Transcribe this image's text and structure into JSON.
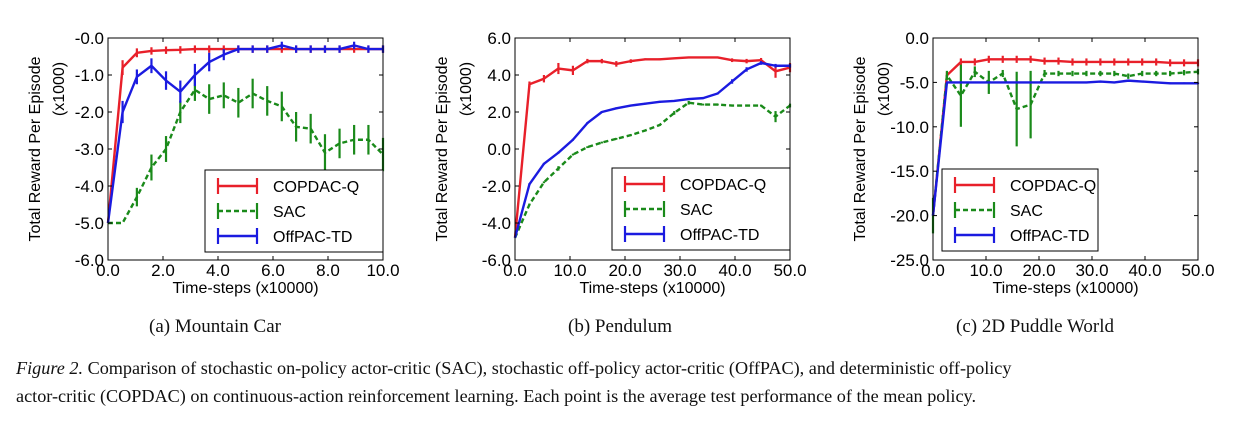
{
  "colors": {
    "COPDAC-Q": "#e8202a",
    "SAC": "#1a8a1a",
    "OffPAC-TD": "#1b1be0"
  },
  "chart_data": [
    {
      "type": "line",
      "subcaption": "(a) Mountain Car",
      "xlabel": "Time-steps (x10000)",
      "ylabel": "Total Reward Per Episode",
      "ylabel2": "(x1000)",
      "xlim": [
        0,
        10
      ],
      "ylim": [
        -6,
        0
      ],
      "xticks": [
        "0.0",
        "2.0",
        "4.0",
        "6.0",
        "8.0",
        "10.0"
      ],
      "yticks": [
        "-6.0",
        "-5.0",
        "-4.0",
        "-3.0",
        "-2.0",
        "-1.0",
        "-0.0"
      ],
      "legend": "bottom-right",
      "x": [
        0,
        0.53,
        1.05,
        1.58,
        2.11,
        2.63,
        3.16,
        3.68,
        4.21,
        4.74,
        5.26,
        5.79,
        6.32,
        6.84,
        7.37,
        7.89,
        8.42,
        8.95,
        9.47,
        10.0
      ],
      "series": [
        {
          "name": "COPDAC-Q",
          "style": "solid",
          "values": [
            -5.0,
            -0.8,
            -0.4,
            -0.35,
            -0.33,
            -0.32,
            -0.3,
            -0.3,
            -0.3,
            -0.3,
            -0.3,
            -0.3,
            -0.3,
            -0.3,
            -0.3,
            -0.3,
            -0.3,
            -0.3,
            -0.3,
            -0.3
          ],
          "errors": [
            0,
            0.2,
            0.12,
            0.1,
            0.1,
            0.1,
            0.1,
            0.1,
            0.1,
            0.1,
            0.1,
            0.1,
            0.1,
            0.1,
            0.1,
            0.1,
            0.1,
            0.1,
            0.1,
            0.1
          ]
        },
        {
          "name": "SAC",
          "style": "dashed",
          "values": [
            -5.0,
            -5.0,
            -4.3,
            -3.5,
            -3.0,
            -2.0,
            -1.4,
            -1.65,
            -1.55,
            -1.75,
            -1.5,
            -1.7,
            -1.85,
            -2.4,
            -2.45,
            -3.1,
            -2.85,
            -2.75,
            -2.75,
            -3.15
          ],
          "errors": [
            0,
            0,
            0.25,
            0.35,
            0.35,
            0.3,
            0.3,
            0.4,
            0.35,
            0.4,
            0.4,
            0.4,
            0.4,
            0.4,
            0.4,
            0.5,
            0.4,
            0.4,
            0.4,
            0.45
          ]
        },
        {
          "name": "OffPAC-TD",
          "style": "solid",
          "values": [
            -5.0,
            -2.0,
            -1.05,
            -0.75,
            -1.15,
            -1.45,
            -1.0,
            -0.65,
            -0.45,
            -0.3,
            -0.3,
            -0.3,
            -0.2,
            -0.3,
            -0.3,
            -0.3,
            -0.3,
            -0.2,
            -0.3,
            -0.3
          ],
          "errors": [
            0,
            0.3,
            0.2,
            0.2,
            0.25,
            0.3,
            0.3,
            0.25,
            0.15,
            0.1,
            0.1,
            0.1,
            0.1,
            0.1,
            0.1,
            0.1,
            0.1,
            0.1,
            0.1,
            0.1
          ]
        }
      ]
    },
    {
      "type": "line",
      "subcaption": "(b) Pendulum",
      "xlabel": "Time-steps (x10000)",
      "ylabel": "Total Reward Per Episode",
      "ylabel2": "(x1000)",
      "xlim": [
        0,
        50
      ],
      "ylim": [
        -6,
        6
      ],
      "xticks": [
        "0.0",
        "10.0",
        "20.0",
        "30.0",
        "40.0",
        "50.0"
      ],
      "yticks": [
        "-6.0",
        "-4.0",
        "-2.0",
        "0.0",
        "2.0",
        "4.0",
        "6.0"
      ],
      "legend": "bottom-right",
      "x": [
        0,
        2.63,
        5.26,
        7.89,
        10.53,
        13.16,
        15.79,
        18.42,
        21.05,
        23.68,
        26.32,
        28.95,
        31.58,
        34.21,
        36.84,
        39.47,
        42.11,
        44.74,
        47.37,
        50.0
      ],
      "series": [
        {
          "name": "COPDAC-Q",
          "style": "solid",
          "values": [
            -4.8,
            3.5,
            3.8,
            4.35,
            4.25,
            4.75,
            4.75,
            4.6,
            4.75,
            4.85,
            4.85,
            4.9,
            4.95,
            4.95,
            4.95,
            4.8,
            4.75,
            4.8,
            4.2,
            4.4
          ],
          "errors": [
            0,
            0.15,
            0.2,
            0.3,
            0.25,
            0.12,
            0.12,
            0.15,
            0.1,
            0.05,
            0.05,
            0.03,
            0.03,
            0.03,
            0.03,
            0.1,
            0.12,
            0.12,
            0.35,
            0.25
          ]
        },
        {
          "name": "SAC",
          "style": "dashed",
          "values": [
            -4.8,
            -3.0,
            -1.8,
            -1.05,
            -0.3,
            0.1,
            0.35,
            0.55,
            0.75,
            1.0,
            1.3,
            1.95,
            2.5,
            2.4,
            2.4,
            2.35,
            2.35,
            2.35,
            1.75,
            2.35
          ],
          "errors": [
            0,
            0.05,
            0.05,
            0.12,
            0.05,
            0.05,
            0.05,
            0.05,
            0.05,
            0.05,
            0.05,
            0.1,
            0.1,
            0.05,
            0.05,
            0.05,
            0.05,
            0.05,
            0.3,
            0.1
          ]
        },
        {
          "name": "OffPAC-TD",
          "style": "solid",
          "values": [
            -4.8,
            -1.9,
            -0.8,
            -0.2,
            0.5,
            1.4,
            2.0,
            2.2,
            2.35,
            2.45,
            2.55,
            2.6,
            2.7,
            2.75,
            3.0,
            3.65,
            4.3,
            4.65,
            4.5,
            4.5
          ],
          "errors": [
            0,
            0.05,
            0.05,
            0.05,
            0.05,
            0.05,
            0.05,
            0.05,
            0.05,
            0.05,
            0.05,
            0.05,
            0.05,
            0.05,
            0.05,
            0.12,
            0.12,
            0.1,
            0.1,
            0.1
          ]
        }
      ]
    },
    {
      "type": "line",
      "subcaption": "(c) 2D Puddle World",
      "xlabel": "Time-steps (x10000)",
      "ylabel": "Total Reward Per Episode",
      "ylabel2": "(x1000)",
      "xlim": [
        0,
        50
      ],
      "ylim": [
        -25,
        0
      ],
      "xticks": [
        "0.0",
        "10.0",
        "20.0",
        "30.0",
        "40.0",
        "50.0"
      ],
      "yticks": [
        "-25.0",
        "-20.0",
        "-15.0",
        "-10.0",
        "-5.0",
        "0.0"
      ],
      "legend": "bottom-left",
      "x": [
        0,
        2.63,
        5.26,
        7.89,
        10.53,
        13.16,
        15.79,
        18.42,
        21.05,
        23.68,
        26.32,
        28.95,
        31.58,
        34.21,
        36.84,
        39.47,
        42.11,
        44.74,
        47.37,
        50.0
      ],
      "series": [
        {
          "name": "COPDAC-Q",
          "style": "solid",
          "values": [
            -20,
            -4.2,
            -2.7,
            -2.7,
            -2.4,
            -2.4,
            -2.4,
            -2.4,
            -2.6,
            -2.6,
            -2.7,
            -2.7,
            -2.7,
            -2.7,
            -2.7,
            -2.7,
            -2.7,
            -2.8,
            -2.8,
            -2.8
          ],
          "errors": [
            0,
            0.4,
            0.4,
            0.4,
            0.4,
            0.4,
            0.4,
            0.4,
            0.4,
            0.4,
            0.4,
            0.4,
            0.4,
            0.4,
            0.4,
            0.4,
            0.4,
            0.4,
            0.4,
            0.4
          ]
        },
        {
          "name": "SAC",
          "style": "dashed",
          "values": [
            -20,
            -4.2,
            -6.5,
            -3.8,
            -5.0,
            -4.0,
            -8.0,
            -7.5,
            -4.0,
            -4.0,
            -4.0,
            -4.0,
            -4.0,
            -4.0,
            -4.3,
            -4.0,
            -4.0,
            -4.0,
            -3.9,
            -3.8
          ],
          "errors": [
            2,
            0.5,
            3.5,
            0.6,
            1.3,
            0.4,
            4.2,
            3.8,
            0.4,
            0.3,
            0.3,
            0.3,
            0.3,
            0.3,
            0.3,
            0.3,
            0.3,
            0.3,
            0.3,
            0.3
          ]
        },
        {
          "name": "OffPAC-TD",
          "style": "solid",
          "values": [
            -20,
            -5.0,
            -5.0,
            -5.0,
            -5.0,
            -5.0,
            -5.0,
            -5.0,
            -5.0,
            -5.0,
            -5.0,
            -5.0,
            -4.9,
            -5.0,
            -4.8,
            -4.9,
            -5.0,
            -5.1,
            -5.1,
            -5.1
          ],
          "errors": [
            0,
            0.1,
            0.1,
            0.1,
            0.1,
            0.1,
            0.1,
            0.1,
            0.1,
            0.1,
            0.1,
            0.1,
            0.1,
            0.1,
            0.1,
            0.1,
            0.1,
            0.1,
            0.1,
            0.1
          ]
        }
      ]
    }
  ],
  "caption": {
    "label": "Figure 2.",
    "line1": "Comparison of stochastic on-policy actor-critic (SAC), stochastic off-policy actor-critic (OffPAC), and deterministic off-policy",
    "line2": "actor-critic (COPDAC) on continuous-action reinforcement learning. Each point is the average test performance of the mean policy."
  }
}
